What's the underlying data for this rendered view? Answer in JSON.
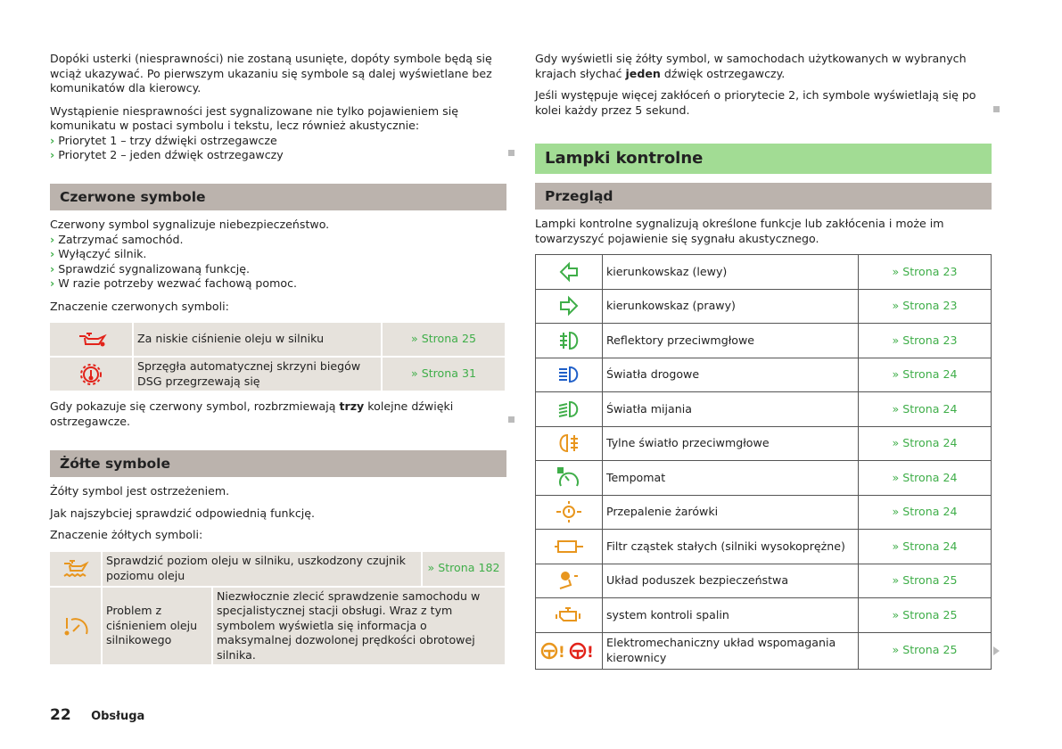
{
  "left": {
    "intro": [
      "Dopóki usterki (niesprawności) nie zostaną usunięte, dopóty symbole będą się wciąż ukazywać. Po pierwszym ukazaniu się symbole są dalej wyświetlane bez komunikatów dla kierowcy.",
      "Wystąpienie niesprawności jest sygnalizowane nie tylko pojawieniem się komunikatu w postaci symbolu i tekstu, lecz również akustycznie:"
    ],
    "priorities": [
      "Priorytet 1 – trzy dźwięki ostrzegawcze",
      "Priorytet 2 – jeden dźwięk ostrzegawczy"
    ],
    "red": {
      "heading": "Czerwone symbole",
      "text": "Czerwony symbol sygnalizuje niebezpieczeństwo.",
      "steps": [
        "Zatrzymać samochód.",
        "Wyłączyć silnik.",
        "Sprawdzić sygnalizowaną funkcję.",
        "W razie potrzeby wezwać fachową pomoc."
      ],
      "meaning": "Znaczenie czerwonych symboli:",
      "rows": [
        {
          "icon": "oil-pressure-icon",
          "color": "#e2231a",
          "text": "Za niskie ciśnienie oleju w silniku",
          "link": "» Strona 25"
        },
        {
          "icon": "gearbox-temperature-icon",
          "color": "#e2231a",
          "text": "Sprzęgła automatycznej skrzyni biegów DSG przegrzewają się",
          "link": "» Strona 31"
        }
      ],
      "after_pre": "Gdy pokazuje się czerwony symbol, rozbrzmiewają ",
      "after_bold": "trzy",
      "after_post": " kolejne dźwięki ostrzegawcze."
    },
    "yellow": {
      "heading": "Żółte symbole",
      "lines": [
        "Żółty symbol jest ostrzeżeniem.",
        "Jak najszybciej sprawdzić odpowiednią funkcję.",
        "Znaczenie żółtych symboli:"
      ],
      "row1": {
        "icon": "oil-level-icon",
        "color": "#e8961e",
        "text": "Sprawdzić poziom oleju w silniku, uszkodzony czujnik poziomu oleju",
        "link": "» Strona 182"
      },
      "row2": {
        "icon": "engine-oil-pressure-warning-icon",
        "color": "#e8961e",
        "label": "Problem z ciśnieniem oleju silnikowego",
        "text": "Niezwłocznie zlecić sprawdzenie samochodu w specjalistycznej stacji obsługi. Wraz z tym symbolem wyświetla się informacja o maksymalnej dozwolonej prędkości obrotowej silnika."
      }
    }
  },
  "right": {
    "p1_pre": "Gdy wyświetli się żółty symbol, w samochodach użytkowanych w wybranych krajach słychać ",
    "p1_bold": "jeden",
    "p1_post": " dźwięk ostrzegawczy.",
    "p2": "Jeśli występuje więcej zakłóceń o priorytecie 2, ich symbole wyświetlają się po kolei każdy przez 5 sekund.",
    "section": "Lampki kontrolne",
    "sub": "Przegląd",
    "text": "Lampki kontrolne sygnalizują określone funkcje lub zakłócenia i może im towarzyszyć pojawienie się sygnału akustycznego.",
    "rows": [
      {
        "icon": "turn-left-icon",
        "color": "#3fae49",
        "text": "kierunkowskaz (lewy)",
        "link": "» Strona 23"
      },
      {
        "icon": "turn-right-icon",
        "color": "#3fae49",
        "text": "kierunkowskaz (prawy)",
        "link": "» Strona 23"
      },
      {
        "icon": "front-fog-light-icon",
        "color": "#3fae49",
        "text": "Reflektory przeciwmgłowe",
        "link": "» Strona 23"
      },
      {
        "icon": "high-beam-icon",
        "color": "#1f5fc8",
        "text": "Światła drogowe",
        "link": "» Strona 24"
      },
      {
        "icon": "low-beam-icon",
        "color": "#3fae49",
        "text": "Światła mijania",
        "link": "» Strona 24"
      },
      {
        "icon": "rear-fog-light-icon",
        "color": "#e8961e",
        "text": "Tylne światło przeciwmgłowe",
        "link": "» Strona 24"
      },
      {
        "icon": "cruise-control-icon",
        "color": "#3fae49",
        "text": "Tempomat",
        "link": "» Strona 24"
      },
      {
        "icon": "bulb-failure-icon",
        "color": "#e8961e",
        "text": "Przepalenie żarówki",
        "link": "» Strona 24"
      },
      {
        "icon": "particle-filter-icon",
        "color": "#e8961e",
        "text": "Filtr cząstek stałych (silniki wysokoprężne)",
        "link": "» Strona 24"
      },
      {
        "icon": "airbag-icon",
        "color": "#e8961e",
        "text": "Układ poduszek bezpieczeństwa",
        "link": "» Strona 25"
      },
      {
        "icon": "engine-check-icon",
        "color": "#e8961e",
        "text": "system kontroli spalin",
        "link": "» Strona 25"
      },
      {
        "icon": "power-steering-icon",
        "color": "#e8961e",
        "text": "Elektromechaniczny układ wspomagania kierownicy",
        "link": "» Strona 25"
      }
    ]
  },
  "footer": {
    "page": "22",
    "section": "Obsługa"
  }
}
